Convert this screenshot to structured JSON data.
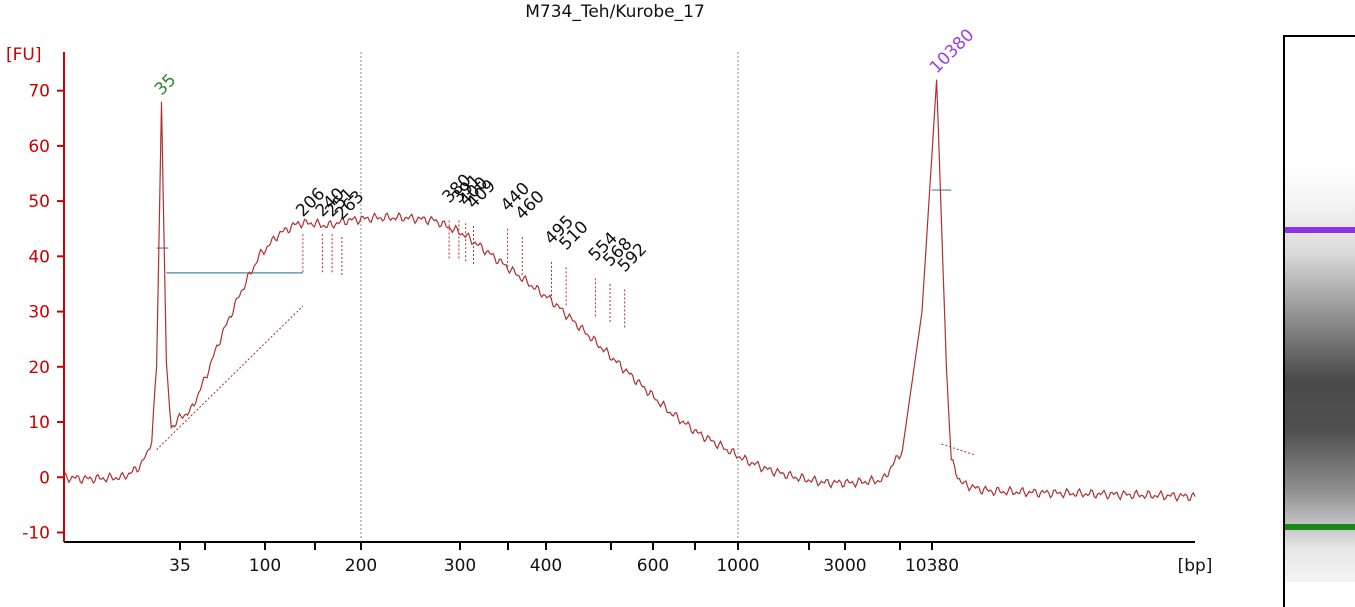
{
  "title": "M734_Teh/Kurobe_17",
  "chart_data": {
    "type": "line",
    "title": "M734_Teh/Kurobe_17",
    "ylabel": "[FU]",
    "xlabel": "[bp]",
    "ylim": [
      -11,
      77
    ],
    "yticks": [
      -10,
      0,
      10,
      20,
      30,
      40,
      50,
      60,
      70
    ],
    "xtick_labels": [
      "35",
      "100",
      "200",
      "300",
      "400",
      "600",
      "1000",
      "3000",
      "10380"
    ],
    "grid_lines_bp": [
      "200",
      "1000"
    ],
    "series": [
      {
        "x": [
          0,
          0.2,
          0.4,
          0.6,
          0.75,
          0.85,
          0.9,
          0.95,
          1.0,
          1.05,
          1.1,
          1.2,
          1.3,
          1.45,
          1.6,
          1.8,
          2.0,
          2.2,
          2.4,
          2.55,
          2.7,
          2.9,
          3.2,
          3.5,
          3.8,
          4.1,
          4.4,
          4.7,
          5.0,
          5.3,
          5.6,
          5.9,
          6.2,
          6.5,
          6.8,
          7.0,
          7.2,
          7.5,
          7.8,
          8.1,
          8.4,
          8.6,
          8.8,
          8.95,
          9.05,
          9.1,
          9.2,
          9.35,
          9.5,
          10.0,
          10.5,
          11.0,
          11.6
        ],
        "y": [
          0,
          -0.3,
          -0.2,
          0,
          1.5,
          4,
          7,
          20,
          68,
          20,
          9,
          11,
          12,
          18,
          25,
          33,
          40,
          44,
          46,
          46,
          45.5,
          46.5,
          47,
          47,
          46.5,
          44,
          40,
          36,
          32,
          27,
          22,
          17,
          12,
          8,
          5,
          3,
          1.5,
          0,
          -1,
          -1,
          -0.5,
          5,
          30,
          72,
          20,
          3,
          -1,
          -2,
          -2.5,
          -2.8,
          -3,
          -3.2,
          -3.5
        ]
      }
    ],
    "peak_labels": [
      {
        "label": "35",
        "x": 1.0,
        "y": 69,
        "color": "#2a8a2a"
      },
      {
        "label": "10380",
        "x": 8.95,
        "y": 73,
        "color": "#9a3ee6"
      },
      {
        "label": "206",
        "x": 2.45,
        "y": 47,
        "color": "#111111"
      },
      {
        "label": "240",
        "x": 2.65,
        "y": 47,
        "color": "#111111"
      },
      {
        "label": "251",
        "x": 2.75,
        "y": 47,
        "color": "#111111"
      },
      {
        "label": "263",
        "x": 2.85,
        "y": 46.5,
        "color": "#111111"
      },
      {
        "label": "380",
        "x": 3.95,
        "y": 49.5,
        "color": "#111111"
      },
      {
        "label": "391",
        "x": 4.05,
        "y": 49.5,
        "color": "#111111"
      },
      {
        "label": "400",
        "x": 4.12,
        "y": 49,
        "color": "#111111"
      },
      {
        "label": "409",
        "x": 4.2,
        "y": 48.5,
        "color": "#111111"
      },
      {
        "label": "440",
        "x": 4.55,
        "y": 48,
        "color": "#111111"
      },
      {
        "label": "460",
        "x": 4.7,
        "y": 46.5,
        "color": "#111111"
      },
      {
        "label": "495",
        "x": 5.0,
        "y": 42,
        "color": "#111111"
      },
      {
        "label": "510",
        "x": 5.15,
        "y": 41,
        "color": "#111111"
      },
      {
        "label": "554",
        "x": 5.45,
        "y": 39,
        "color": "#111111"
      },
      {
        "label": "568",
        "x": 5.6,
        "y": 38,
        "color": "#111111"
      },
      {
        "label": "592",
        "x": 5.75,
        "y": 37,
        "color": "#111111"
      }
    ],
    "colors": {
      "trace": "#b03030",
      "axis": "#cc0000",
      "hline": "#4a8a9a",
      "grid": "#888888"
    }
  },
  "gel": {
    "upper_marker_color": "#8a33e6",
    "lower_marker_color": "#1a8a1a"
  }
}
